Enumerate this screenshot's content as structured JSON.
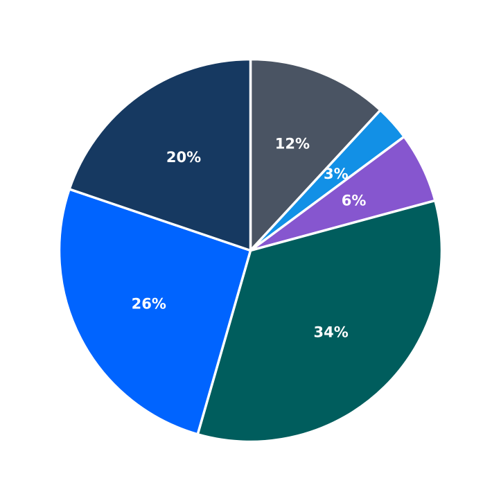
{
  "chart_data": {
    "type": "pie",
    "start": "top",
    "direction": "clockwise",
    "title": "",
    "slices": [
      {
        "label": "12%",
        "value": 12,
        "color": "#4a5463"
      },
      {
        "label": "3%",
        "value": 3,
        "color": "#1290e6"
      },
      {
        "label": "6%",
        "value": 6,
        "color": "#8656cf"
      },
      {
        "label": "34%",
        "value": 34,
        "color": "#005d5d"
      },
      {
        "label": "26%",
        "value": 26,
        "color": "#0064ff"
      },
      {
        "label": "20%",
        "value": 20,
        "color": "#163961"
      }
    ]
  }
}
